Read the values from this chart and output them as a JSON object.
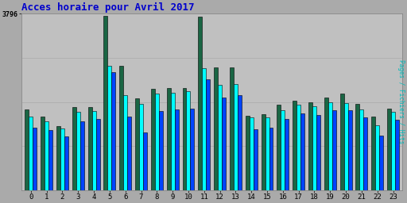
{
  "title": "Acces horaire pour Avril 2017",
  "title_color": "#0000cc",
  "title_fontsize": 9,
  "ylabel_right": "Pages / Fichiers / Hits",
  "ylabel_right_color": "#00bbbb",
  "background_color": "#c0c0c0",
  "plot_bg_color": "#c0c0c0",
  "ytick_label": "3796",
  "ytick_color": "#000000",
  "hours": [
    0,
    1,
    2,
    3,
    4,
    5,
    6,
    7,
    8,
    9,
    10,
    11,
    12,
    13,
    14,
    15,
    16,
    17,
    18,
    19,
    20,
    21,
    22,
    23
  ],
  "hits": [
    1580,
    1480,
    1320,
    1680,
    1700,
    2680,
    2050,
    1850,
    2080,
    2100,
    2130,
    2620,
    2270,
    2290,
    1560,
    1560,
    1720,
    1840,
    1800,
    1890,
    1880,
    1730,
    1390,
    1680
  ],
  "fichiers": [
    1350,
    1300,
    1150,
    1480,
    1530,
    2530,
    1580,
    1250,
    1700,
    1740,
    1750,
    2380,
    2000,
    2040,
    1310,
    1340,
    1530,
    1660,
    1620,
    1720,
    1720,
    1570,
    1180,
    1510
  ],
  "pages": [
    1730,
    1580,
    1380,
    1780,
    1790,
    3750,
    2680,
    1980,
    2180,
    2200,
    2200,
    3720,
    2640,
    2640,
    1600,
    1640,
    1840,
    1930,
    1890,
    1990,
    2080,
    1850,
    1580,
    1760
  ],
  "hits_color": "#00ffff",
  "fichiers_color": "#0044ff",
  "pages_color": "#1a6644",
  "bar_width": 0.25,
  "ylim": [
    0,
    3796
  ],
  "border_color": "#000000",
  "grid_color": "#aaaaaa",
  "outer_bg": "#aaaaaa"
}
